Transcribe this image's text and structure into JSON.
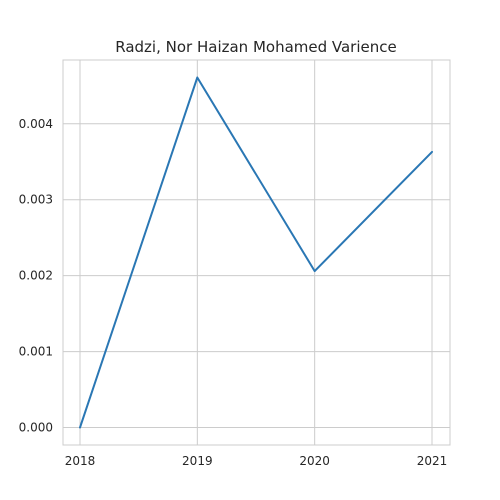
{
  "chart_data": {
    "type": "line",
    "title": "Radzi, Nor Haizan Mohamed Varience",
    "xlabel": "",
    "ylabel": "",
    "x": [
      "2018",
      "2019",
      "2020",
      "2021"
    ],
    "series": [
      {
        "values": [
          0.0,
          0.00461,
          0.00206,
          0.00363
        ],
        "color": "#2a77b4"
      }
    ],
    "yticks": [
      "0.000",
      "0.001",
      "0.002",
      "0.003",
      "0.004"
    ],
    "ylim": [
      -0.00023,
      0.00484
    ],
    "grid": true,
    "legend": "none",
    "colors": {
      "line": "#2a77b4",
      "grid": "#cccccc",
      "spine": "#cccccc",
      "text": "#262626"
    }
  }
}
